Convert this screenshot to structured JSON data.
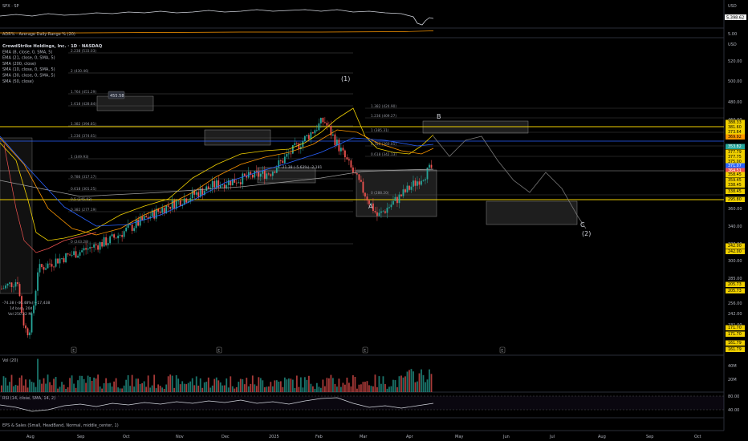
{
  "top_pane": {
    "symbol_label": "SPX · SP",
    "currency": "USD",
    "last_value": "5,398.62",
    "scale_values": [
      "5,398.62"
    ]
  },
  "adr_pane": {
    "label": "ADR% - Average Daily Range % (20)",
    "scale_value": "5.00"
  },
  "main_pane": {
    "currency": "USD",
    "legend": [
      "CrowdStrike Holdings, Inc. · 1D · NASDAQ",
      "EMA (8, close, 0, SMA, 5)",
      "EMA (21, close, 0, SMA, 5)",
      "SMA (200, close)",
      "SMA (10, close, 0, SMA, 5)",
      "SMA (30, close, 0, SMA, 5)",
      "SMA (50, close)"
    ],
    "price_axis": [
      "520.00",
      "500.00",
      "480.00",
      "460.00",
      "440.00",
      "420.00",
      "400.00",
      "380.00",
      "360.00",
      "340.00",
      "320.00",
      "300.00",
      "285.00",
      "270.00",
      "256.00",
      "242.00",
      "231.00",
      "220.00",
      "205.00",
      "192.00",
      "182.00",
      "171.70",
      "161.79"
    ],
    "highlighted_prices": [
      {
        "label": "388.33",
        "color": "#f0d000",
        "text_color": "#000"
      },
      {
        "label": "381.60",
        "color": "#f0d000",
        "text_color": "#000"
      },
      {
        "label": "373.64",
        "color": "#f0d000",
        "text_color": "#000"
      },
      {
        "label": "369.92",
        "color": "#ff9800",
        "text_color": "#000"
      },
      {
        "label": "353.82",
        "color": "#26a69a",
        "text_color": "#fff"
      },
      {
        "label": "377.79",
        "color": "#f0d000",
        "text_color": "#000"
      },
      {
        "label": "377.75",
        "color": "#f0d000",
        "text_color": "#000"
      },
      {
        "label": "375.00",
        "color": "#f0d000",
        "text_color": "#000"
      },
      {
        "label": "371.07",
        "color": "#2962ff",
        "text_color": "#fff"
      },
      {
        "label": "364.51",
        "color": "#ef5350",
        "text_color": "#fff"
      },
      {
        "label": "358.45",
        "color": "#f0d000",
        "text_color": "#000"
      },
      {
        "label": "359.45",
        "color": "#f0d000",
        "text_color": "#000"
      },
      {
        "label": "338.45",
        "color": "#f0d000",
        "text_color": "#000"
      },
      {
        "label": "338.45",
        "color": "#f0d000",
        "text_color": "#000"
      },
      {
        "label": "295.80",
        "color": "#f0d000",
        "text_color": "#000"
      },
      {
        "label": "242.00",
        "color": "#f0d000",
        "text_color": "#000"
      },
      {
        "label": "242.00",
        "color": "#f0d000",
        "text_color": "#000"
      },
      {
        "label": "205.73",
        "color": "#f0d000",
        "text_color": "#000"
      },
      {
        "label": "205.73",
        "color": "#f0d000",
        "text_color": "#000"
      },
      {
        "label": "171.70",
        "color": "#f0d000",
        "text_color": "#000"
      },
      {
        "label": "171.70",
        "color": "#f0d000",
        "text_color": "#000"
      },
      {
        "label": "161.79",
        "color": "#f0d000",
        "text_color": "#000"
      },
      {
        "label": "161.79",
        "color": "#f0d000",
        "text_color": "#000"
      }
    ],
    "price_box_label": "455.58",
    "wave_labels": {
      "one": "(1)",
      "a": "A",
      "b": "B",
      "c": "C",
      "two": "(2)"
    },
    "fib_labels": [
      "2.238 (533.03)",
      "2 (430.46)",
      "1.764 (451.29)",
      "1.618 (428.84)",
      "1.382 (394.81)",
      "1.236 (374.61)",
      "1 (349.93)",
      "0.786 (317.17)",
      "0.618 (301.25)",
      "0.5 (245.93)",
      "0.382 (277.19)",
      "0 (243.28)"
    ],
    "fib_labels_right": [
      "1.382 (424.90)",
      "1.236 (409.27)",
      "1 (385.31)",
      "0.786 (360.01)",
      "0.618 (342.13)",
      "0 (288.20)"
    ],
    "measure_label": "-21.38 (-5.63%) -2,181",
    "stats_box": [
      "-74.38 (-46.48%) −17,438",
      "14 bars, 20d",
      "Vol 250.22 M"
    ],
    "earnings_markers": [
      "E",
      "E",
      "E",
      "E"
    ]
  },
  "vol_pane": {
    "label": "Vol (20)",
    "scale": [
      "40M",
      "20M"
    ]
  },
  "rsi_pane": {
    "label": "RSI (14, close, SMA, 14, 2)",
    "scale": [
      "80.00",
      "40.00"
    ]
  },
  "eps_pane": {
    "label": "EPS & Sales (Small, HeadBand, Normal, middle_center, 1)"
  },
  "time_axis": [
    "Aug",
    "Sep",
    "Oct",
    "Nov",
    "Dec",
    "2025",
    "Feb",
    "Mar",
    "Apr",
    "May",
    "Jun",
    "Jul",
    "Aug",
    "Sep",
    "Oct"
  ],
  "colors": {
    "background": "#000000",
    "yellow_line": "#f0d000",
    "up": "#26a69a",
    "down": "#ef5350",
    "ema8": "#f0d000",
    "ema21": "#ff9800",
    "sma200": "#9e9e9e",
    "sma50": "#2962ff"
  },
  "chart_data": {
    "type": "line",
    "title": "CrowdStrike Holdings, Inc. · 1D · NASDAQ",
    "x": [
      "Aug",
      "Sep",
      "Oct",
      "Nov",
      "Dec",
      "2025",
      "Feb",
      "Mar",
      "Apr"
    ],
    "series": [
      {
        "name": "CrowdStrike Holdings, Inc.",
        "values": [
          230,
          265,
          290,
          330,
          360,
          375,
          440,
          320,
          380
        ]
      }
    ],
    "projection": {
      "values": [
        380,
        365,
        320,
        285
      ]
    },
    "ylim": [
      150,
      540
    ]
  }
}
